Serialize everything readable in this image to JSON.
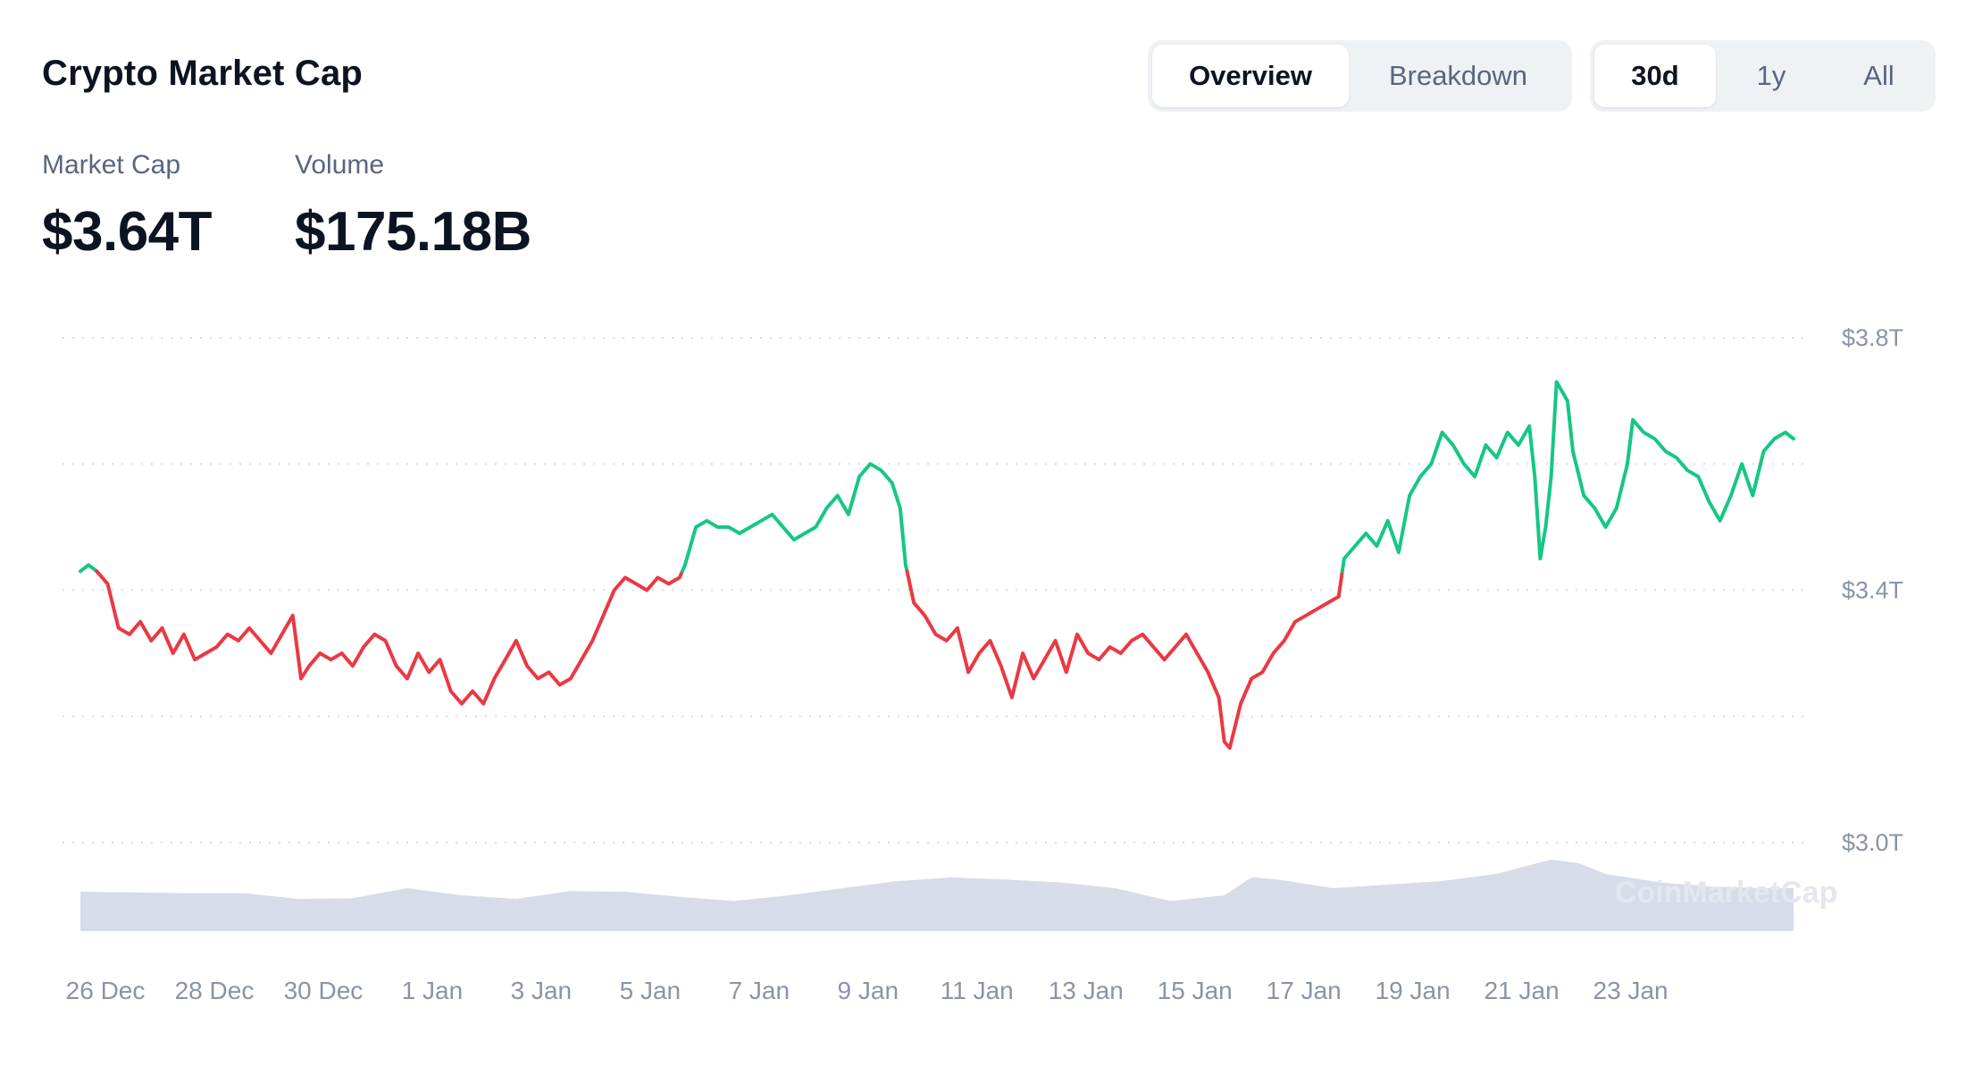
{
  "header": {
    "title": "Crypto Market Cap",
    "view_tabs": [
      {
        "label": "Overview",
        "active": true
      },
      {
        "label": "Breakdown",
        "active": false
      }
    ],
    "range_tabs": [
      {
        "label": "30d",
        "active": true
      },
      {
        "label": "1y",
        "active": false
      },
      {
        "label": "All",
        "active": false
      }
    ]
  },
  "stats": {
    "market_cap": {
      "label": "Market Cap",
      "value": "$3.64T"
    },
    "volume": {
      "label": "Volume",
      "value": "$175.18B"
    }
  },
  "colors": {
    "up": "#16c784",
    "down": "#ea3943",
    "volume": "#cfd6e4",
    "grid": "#d7dde6",
    "muted_text": "#58667e"
  },
  "watermark": "CoinMarketCap",
  "chart_data": {
    "type": "line",
    "title": "Crypto Market Cap",
    "y_unit": "USD trillions",
    "ylim": [
      3.0,
      3.8
    ],
    "y_ticks": [
      {
        "value": 3.8,
        "label": "$3.8T"
      },
      {
        "value": 3.4,
        "label": "$3.4T"
      },
      {
        "value": 3.0,
        "label": "$3.0T"
      }
    ],
    "x_ticks": [
      "26 Dec",
      "28 Dec",
      "30 Dec",
      "1 Jan",
      "3 Jan",
      "5 Jan",
      "7 Jan",
      "9 Jan",
      "11 Jan",
      "13 Jan",
      "15 Jan",
      "17 Jan",
      "19 Jan",
      "21 Jan",
      "23 Jan"
    ],
    "grid": true,
    "baseline": 3.43,
    "coloring": "green above baseline, red below baseline",
    "series": [
      {
        "values": [
          [
            0.0,
            3.43
          ],
          [
            0.15,
            3.44
          ],
          [
            0.3,
            3.43
          ],
          [
            0.5,
            3.41
          ],
          [
            0.7,
            3.34
          ],
          [
            0.9,
            3.33
          ],
          [
            1.1,
            3.35
          ],
          [
            1.3,
            3.32
          ],
          [
            1.5,
            3.34
          ],
          [
            1.7,
            3.3
          ],
          [
            1.9,
            3.33
          ],
          [
            2.1,
            3.29
          ],
          [
            2.3,
            3.3
          ],
          [
            2.5,
            3.31
          ],
          [
            2.7,
            3.33
          ],
          [
            2.9,
            3.32
          ],
          [
            3.1,
            3.34
          ],
          [
            3.3,
            3.32
          ],
          [
            3.5,
            3.3
          ],
          [
            3.7,
            3.33
          ],
          [
            3.9,
            3.36
          ],
          [
            4.05,
            3.26
          ],
          [
            4.2,
            3.28
          ],
          [
            4.4,
            3.3
          ],
          [
            4.6,
            3.29
          ],
          [
            4.8,
            3.3
          ],
          [
            5.0,
            3.28
          ],
          [
            5.2,
            3.31
          ],
          [
            5.4,
            3.33
          ],
          [
            5.6,
            3.32
          ],
          [
            5.8,
            3.28
          ],
          [
            6.0,
            3.26
          ],
          [
            6.2,
            3.3
          ],
          [
            6.4,
            3.27
          ],
          [
            6.6,
            3.29
          ],
          [
            6.8,
            3.24
          ],
          [
            7.0,
            3.22
          ],
          [
            7.2,
            3.24
          ],
          [
            7.4,
            3.22
          ],
          [
            7.6,
            3.26
          ],
          [
            7.8,
            3.29
          ],
          [
            8.0,
            3.32
          ],
          [
            8.2,
            3.28
          ],
          [
            8.4,
            3.26
          ],
          [
            8.6,
            3.27
          ],
          [
            8.8,
            3.25
          ],
          [
            9.0,
            3.26
          ],
          [
            9.2,
            3.29
          ],
          [
            9.4,
            3.32
          ],
          [
            9.6,
            3.36
          ],
          [
            9.8,
            3.4
          ],
          [
            10.0,
            3.42
          ],
          [
            10.2,
            3.41
          ],
          [
            10.4,
            3.4
          ],
          [
            10.6,
            3.42
          ],
          [
            10.8,
            3.41
          ],
          [
            11.0,
            3.42
          ],
          [
            11.1,
            3.44
          ],
          [
            11.3,
            3.5
          ],
          [
            11.5,
            3.51
          ],
          [
            11.7,
            3.5
          ],
          [
            11.9,
            3.5
          ],
          [
            12.1,
            3.49
          ],
          [
            12.3,
            3.5
          ],
          [
            12.5,
            3.51
          ],
          [
            12.7,
            3.52
          ],
          [
            12.9,
            3.5
          ],
          [
            13.1,
            3.48
          ],
          [
            13.3,
            3.49
          ],
          [
            13.5,
            3.5
          ],
          [
            13.7,
            3.53
          ],
          [
            13.9,
            3.55
          ],
          [
            14.1,
            3.52
          ],
          [
            14.3,
            3.58
          ],
          [
            14.5,
            3.6
          ],
          [
            14.7,
            3.59
          ],
          [
            14.9,
            3.57
          ],
          [
            15.05,
            3.53
          ],
          [
            15.15,
            3.44
          ],
          [
            15.3,
            3.38
          ],
          [
            15.5,
            3.36
          ],
          [
            15.7,
            3.33
          ],
          [
            15.9,
            3.32
          ],
          [
            16.1,
            3.34
          ],
          [
            16.3,
            3.27
          ],
          [
            16.5,
            3.3
          ],
          [
            16.7,
            3.32
          ],
          [
            16.9,
            3.28
          ],
          [
            17.1,
            3.23
          ],
          [
            17.3,
            3.3
          ],
          [
            17.5,
            3.26
          ],
          [
            17.7,
            3.29
          ],
          [
            17.9,
            3.32
          ],
          [
            18.1,
            3.27
          ],
          [
            18.3,
            3.33
          ],
          [
            18.5,
            3.3
          ],
          [
            18.7,
            3.29
          ],
          [
            18.9,
            3.31
          ],
          [
            19.1,
            3.3
          ],
          [
            19.3,
            3.32
          ],
          [
            19.5,
            3.33
          ],
          [
            19.7,
            3.31
          ],
          [
            19.9,
            3.29
          ],
          [
            20.1,
            3.31
          ],
          [
            20.3,
            3.33
          ],
          [
            20.5,
            3.3
          ],
          [
            20.7,
            3.27
          ],
          [
            20.9,
            3.23
          ],
          [
            21.0,
            3.16
          ],
          [
            21.1,
            3.15
          ],
          [
            21.3,
            3.22
          ],
          [
            21.5,
            3.26
          ],
          [
            21.7,
            3.27
          ],
          [
            21.9,
            3.3
          ],
          [
            22.1,
            3.32
          ],
          [
            22.3,
            3.35
          ],
          [
            22.5,
            3.36
          ],
          [
            22.7,
            3.37
          ],
          [
            22.9,
            3.38
          ],
          [
            23.1,
            3.39
          ],
          [
            23.2,
            3.45
          ],
          [
            23.4,
            3.47
          ],
          [
            23.6,
            3.49
          ],
          [
            23.8,
            3.47
          ],
          [
            24.0,
            3.51
          ],
          [
            24.2,
            3.46
          ],
          [
            24.4,
            3.55
          ],
          [
            24.6,
            3.58
          ],
          [
            24.8,
            3.6
          ],
          [
            25.0,
            3.65
          ],
          [
            25.2,
            3.63
          ],
          [
            25.4,
            3.6
          ],
          [
            25.6,
            3.58
          ],
          [
            25.8,
            3.63
          ],
          [
            26.0,
            3.61
          ],
          [
            26.2,
            3.65
          ],
          [
            26.4,
            3.63
          ],
          [
            26.6,
            3.66
          ],
          [
            26.7,
            3.58
          ],
          [
            26.8,
            3.45
          ],
          [
            26.9,
            3.5
          ],
          [
            27.0,
            3.58
          ],
          [
            27.1,
            3.73
          ],
          [
            27.3,
            3.7
          ],
          [
            27.4,
            3.62
          ],
          [
            27.6,
            3.55
          ],
          [
            27.8,
            3.53
          ],
          [
            28.0,
            3.5
          ],
          [
            28.2,
            3.53
          ],
          [
            28.4,
            3.6
          ],
          [
            28.5,
            3.67
          ],
          [
            28.7,
            3.65
          ],
          [
            28.9,
            3.64
          ],
          [
            29.1,
            3.62
          ],
          [
            29.3,
            3.61
          ],
          [
            29.5,
            3.59
          ],
          [
            29.7,
            3.58
          ],
          [
            29.9,
            3.54
          ],
          [
            30.1,
            3.51
          ],
          [
            30.3,
            3.55
          ],
          [
            30.5,
            3.6
          ],
          [
            30.7,
            3.55
          ],
          [
            30.9,
            3.62
          ],
          [
            31.1,
            3.64
          ],
          [
            31.3,
            3.65
          ],
          [
            31.45,
            3.64
          ]
        ]
      }
    ],
    "volume": {
      "label": "Volume",
      "values": [
        [
          0.0,
          0.55
        ],
        [
          1.0,
          0.54
        ],
        [
          2.0,
          0.53
        ],
        [
          3.0,
          0.53
        ],
        [
          4.0,
          0.45
        ],
        [
          5.0,
          0.46
        ],
        [
          6.0,
          0.6
        ],
        [
          7.0,
          0.5
        ],
        [
          8.0,
          0.45
        ],
        [
          9.0,
          0.56
        ],
        [
          10.0,
          0.55
        ],
        [
          11.0,
          0.48
        ],
        [
          12.0,
          0.42
        ],
        [
          13.0,
          0.5
        ],
        [
          14.0,
          0.6
        ],
        [
          15.0,
          0.7
        ],
        [
          16.0,
          0.75
        ],
        [
          17.0,
          0.72
        ],
        [
          18.0,
          0.68
        ],
        [
          19.0,
          0.6
        ],
        [
          20.0,
          0.42
        ],
        [
          21.0,
          0.5
        ],
        [
          21.5,
          0.75
        ],
        [
          22.0,
          0.72
        ],
        [
          23.0,
          0.6
        ],
        [
          24.0,
          0.65
        ],
        [
          25.0,
          0.7
        ],
        [
          26.0,
          0.8
        ],
        [
          27.0,
          1.0
        ],
        [
          27.5,
          0.95
        ],
        [
          28.0,
          0.8
        ],
        [
          29.0,
          0.68
        ],
        [
          30.0,
          0.62
        ],
        [
          31.0,
          0.6
        ],
        [
          31.45,
          0.6
        ]
      ]
    }
  }
}
